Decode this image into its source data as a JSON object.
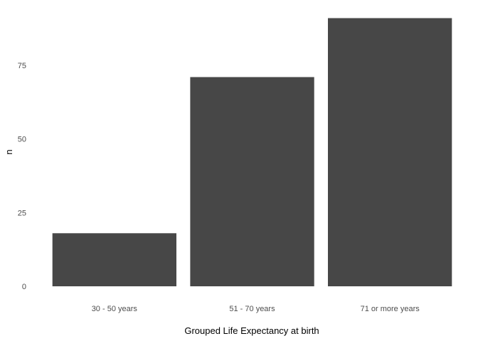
{
  "chart_data": {
    "type": "bar",
    "title": "",
    "xlabel": "Grouped Life Expectancy at birth",
    "ylabel": "n",
    "categories": [
      "30 - 50 years",
      "51 - 70 years",
      "71 or more years"
    ],
    "values": [
      18,
      71,
      91
    ],
    "ylim": [
      0,
      91
    ],
    "yticks": [
      0,
      25,
      50,
      75
    ],
    "grid": false,
    "legend": "none",
    "bar_color": "#474747",
    "background": "#ffffff"
  }
}
